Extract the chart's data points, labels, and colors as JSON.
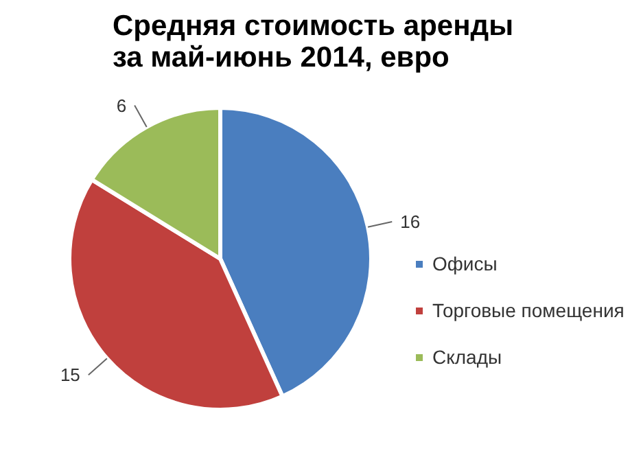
{
  "chart_data": {
    "type": "pie",
    "title": "Средняя стоимость аренды\nза май-июнь 2014, евро",
    "categories": [
      "Офисы",
      "Торговые помещения",
      "Склады"
    ],
    "values": [
      16,
      15,
      6
    ],
    "colors": [
      "#4a7ebf",
      "#c0403d",
      "#9bbb59"
    ],
    "data_labels": true,
    "legend": "right"
  }
}
